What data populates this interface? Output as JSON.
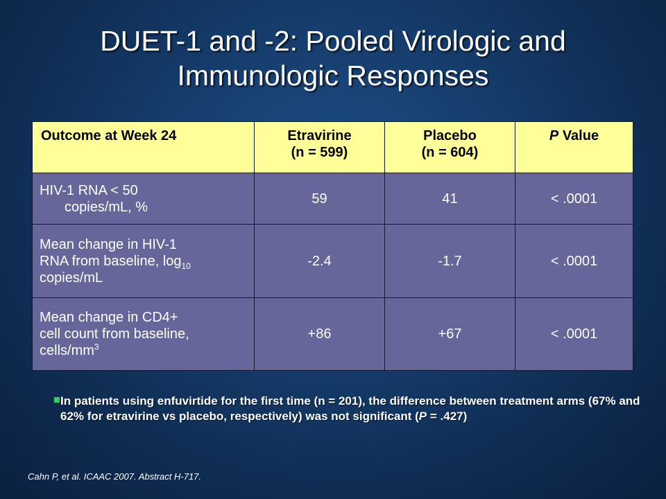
{
  "slide": {
    "title_line1": "DUET-1 and -2: Pooled Virologic and",
    "title_line2": "Immunologic Responses"
  },
  "table": {
    "header": {
      "col0": "Outcome at Week 24",
      "col1_line1": "Etravirine",
      "col1_line2": "(n = 599)",
      "col2_line1": "Placebo",
      "col2_line2": "(n = 604)",
      "col3_italic": "P",
      "col3_rest": " Value"
    },
    "rows": [
      {
        "label_line1": "HIV-1 RNA < 50",
        "label_line2": "copies/mL, %",
        "etravirine": "59",
        "placebo": "41",
        "p_value": "< .0001"
      },
      {
        "label_line1": "Mean change in HIV-1",
        "label_line2": "RNA from baseline, log",
        "label_sub": "10",
        "label_line3": "copies/mL",
        "etravirine": "-2.4",
        "placebo": "-1.7",
        "p_value": "< .0001"
      },
      {
        "label_line1": "Mean change in CD4+",
        "label_line2": "cell count from baseline,",
        "label_line3": "cells/mm",
        "label_sup": "3",
        "etravirine": "+86",
        "placebo": "+67",
        "p_value": "< .0001"
      }
    ]
  },
  "bullet": {
    "text_a": "In patients using enfuvirtide for the first time (n = 201), the difference between treatment arms (67% and 62% for etravirine vs placebo, respectively) was not significant (",
    "text_p": "P",
    "text_b": " = .427)",
    "marker_color": "#2fd15a"
  },
  "citation": "Cahn P, et al. ICAAC 2007. Abstract H-717.",
  "colors": {
    "background": "#163e6e",
    "header_fill": "#ffff99",
    "body_fill": "#66669a"
  }
}
